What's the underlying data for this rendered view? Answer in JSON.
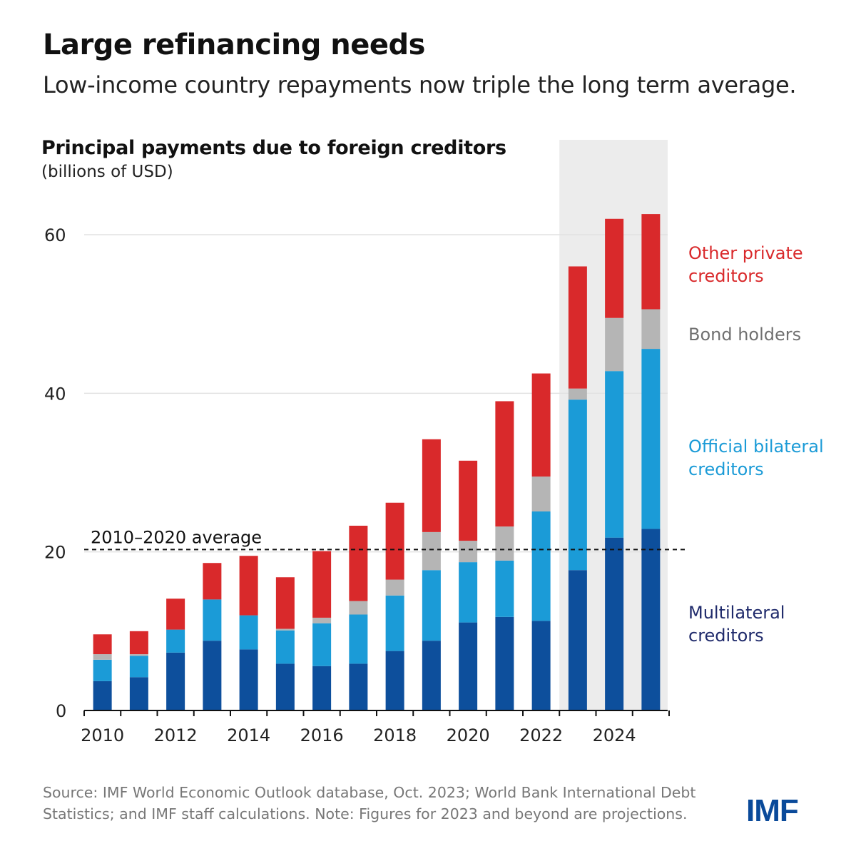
{
  "header": {
    "title": "Large refinancing needs",
    "subtitle": "Low-income country repayments now triple the long term average."
  },
  "chart_data": {
    "type": "bar",
    "stacked": true,
    "title": "Principal payments due to foreign creditors",
    "unit": "(billions of USD)",
    "categories": [
      "2010",
      "2011",
      "2012",
      "2013",
      "2014",
      "2015",
      "2016",
      "2017",
      "2018",
      "2019",
      "2020",
      "2021",
      "2022",
      "2023",
      "2024",
      "2025"
    ],
    "x_tick_labels": [
      "2010",
      "2012",
      "2014",
      "2016",
      "2018",
      "2020",
      "2022",
      "2024"
    ],
    "y_ticks": [
      0,
      20,
      40,
      60
    ],
    "ylim": [
      0,
      65
    ],
    "grid": true,
    "projection_shaded_from": "2023",
    "series": [
      {
        "name": "Multilateral creditors",
        "color": "#0d4f9c",
        "label_color": "#1f2a6b",
        "values": [
          3.7,
          4.2,
          7.3,
          8.8,
          7.7,
          5.9,
          5.6,
          5.9,
          7.5,
          8.8,
          11.1,
          11.8,
          11.3,
          17.7,
          21.8,
          22.9
        ]
      },
      {
        "name": "Official bilateral creditors",
        "color": "#1b9bd7",
        "label_color": "#1b9bd7",
        "values": [
          2.7,
          2.7,
          2.9,
          5.2,
          4.3,
          4.2,
          5.4,
          6.2,
          7.0,
          8.9,
          7.6,
          7.1,
          13.8,
          21.5,
          21.0,
          22.7
        ]
      },
      {
        "name": "Bond holders",
        "color": "#b5b5b5",
        "label_color": "#707070",
        "values": [
          0.7,
          0.2,
          0.0,
          0.0,
          0.0,
          0.2,
          0.7,
          1.7,
          2.0,
          4.8,
          2.7,
          4.3,
          4.4,
          1.4,
          6.7,
          5.0
        ]
      },
      {
        "name": "Other private creditors",
        "color": "#d9292b",
        "label_color": "#d9292b",
        "values": [
          2.5,
          2.9,
          3.9,
          4.6,
          7.5,
          6.5,
          8.4,
          9.5,
          9.7,
          11.7,
          10.1,
          15.8,
          13.0,
          15.4,
          12.5,
          12.0
        ]
      }
    ],
    "reference_line": {
      "label": "2010–2020 average",
      "value": 20.3
    }
  },
  "legend": {
    "other_private": "Other private creditors",
    "bond_holders": "Bond holders",
    "official_bilateral": "Official bilateral creditors",
    "multilateral": "Multilateral creditors"
  },
  "footer": {
    "source_line1": "Source: IMF World Economic Outlook database, Oct. 2023; World Bank International Debt",
    "source_line2": "Statistics; and IMF staff calculations. Note: Figures for 2023 and beyond are projections.",
    "logo": "IMF"
  }
}
